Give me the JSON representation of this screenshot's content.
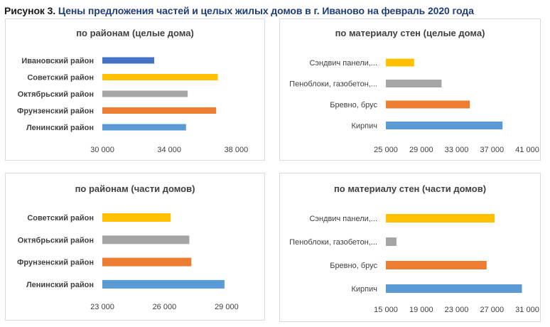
{
  "figure": {
    "label": "Рисунок 3.",
    "title": "Цены предложения частей и целых жилых домов в г. Иваново на февраль 2020 года"
  },
  "colors": {
    "blue_dark": "#4472c4",
    "gold": "#ffc000",
    "gray": "#a5a5a5",
    "orange": "#ed7d31",
    "blue": "#5b9bd5"
  },
  "chart_data": [
    {
      "type": "bar",
      "orientation": "horizontal",
      "title": "по районам (целые дома)",
      "categories": [
        "Ивановский район",
        "Советский район",
        "Октябрьский район",
        "Фрунзенский район",
        "Ленинский район"
      ],
      "values": [
        33100,
        36900,
        35100,
        36800,
        35000
      ],
      "colors": [
        "#4472c4",
        "#ffc000",
        "#a5a5a5",
        "#ed7d31",
        "#5b9bd5"
      ],
      "xlim": [
        30000,
        39000
      ],
      "ticks": [
        30000,
        34000,
        38000
      ],
      "tick_labels": [
        "30 000",
        "34 000",
        "38 000"
      ],
      "grid": false
    },
    {
      "type": "bar",
      "orientation": "horizontal",
      "title": "по материалу стен (целые дома)",
      "categories": [
        "Сэндвич панели,...",
        "Пеноблоки, газобетон,...",
        "Бревно, брус",
        "Кирпич"
      ],
      "values": [
        28200,
        31300,
        34500,
        38200
      ],
      "colors": [
        "#ffc000",
        "#a5a5a5",
        "#ed7d31",
        "#5b9bd5"
      ],
      "xlim": [
        25000,
        41000
      ],
      "ticks": [
        25000,
        29000,
        33000,
        37000,
        41000
      ],
      "tick_labels": [
        "25 000",
        "29 000",
        "33 000",
        "37 000",
        "41 000"
      ],
      "grid": false
    },
    {
      "type": "bar",
      "orientation": "horizontal",
      "title": "по районам (части домов)",
      "categories": [
        "Советский район",
        "Октябрьский район",
        "Фрунзенский район",
        "Ленинский район"
      ],
      "values": [
        26300,
        27200,
        27300,
        28900
      ],
      "colors": [
        "#ffc000",
        "#a5a5a5",
        "#ed7d31",
        "#5b9bd5"
      ],
      "xlim": [
        23000,
        30000
      ],
      "ticks": [
        23000,
        26000,
        29000
      ],
      "tick_labels": [
        "23 000",
        "26 000",
        "29 000"
      ],
      "grid": false
    },
    {
      "type": "bar",
      "orientation": "horizontal",
      "title": "по материалу стен (части домов)",
      "categories": [
        "Сэндвич панели,...",
        "Пеноблоки, газобетон,...",
        "Бревно, брус",
        "Кирпич"
      ],
      "values": [
        27300,
        16200,
        26400,
        30400
      ],
      "colors": [
        "#ffc000",
        "#a5a5a5",
        "#ed7d31",
        "#5b9bd5"
      ],
      "xlim": [
        15000,
        31000
      ],
      "ticks": [
        15000,
        19000,
        23000,
        27000,
        31000
      ],
      "tick_labels": [
        "15 000",
        "19 000",
        "23 000",
        "27 000",
        "31 000"
      ],
      "grid": false
    }
  ]
}
